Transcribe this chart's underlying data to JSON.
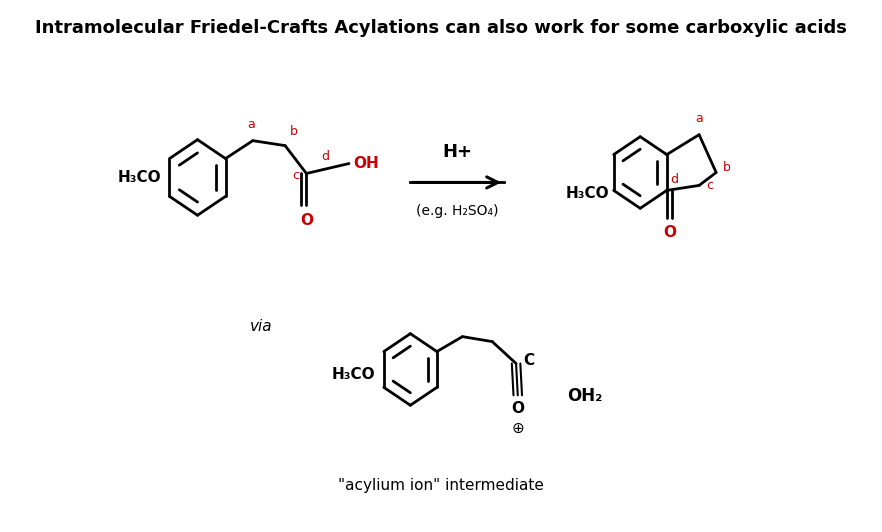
{
  "title": "Intramolecular Friedel-Crafts Acylations can also work for some carboxylic acids",
  "title_fontsize": 13,
  "black": "#000000",
  "red": "#CC0000",
  "bg": "#ffffff",
  "reagent_label": "H+",
  "reagent_sublabel": "(e.g. H₂SO₄)",
  "via_label": "via",
  "acylium_label": "\"acylium ion\" intermediate",
  "oh2_label": "OH₂"
}
